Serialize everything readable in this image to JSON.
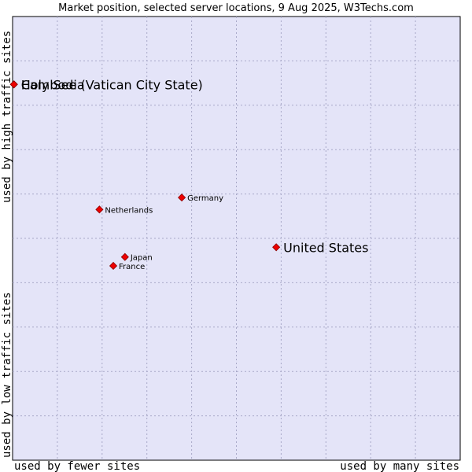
{
  "chart_data": {
    "type": "scatter",
    "title": "Market position, selected server locations, 9 Aug 2025, W3Techs.com",
    "xlabel_low": "used by fewer sites",
    "xlabel_high": "used by many sites",
    "ylabel_low": "used by low traffic sites",
    "ylabel_high": "used by high traffic sites",
    "xlim": [
      0,
      100
    ],
    "ylim": [
      0,
      100
    ],
    "grid": true,
    "colors": {
      "plot_bg": "#e4e4f8",
      "grid": "#a8a8c8",
      "marker": "#ee0000",
      "marker_edge": "#880000"
    },
    "points": [
      {
        "label": "Holy See (Vatican City State)",
        "x": 0.3,
        "y": 84.7,
        "size": "big"
      },
      {
        "label": "Cambodia",
        "x": 0.3,
        "y": 84.7,
        "size": "big"
      },
      {
        "label": "Germany",
        "x": 37.8,
        "y": 59.2,
        "size": "small"
      },
      {
        "label": "Netherlands",
        "x": 19.4,
        "y": 56.5,
        "size": "small"
      },
      {
        "label": "United States",
        "x": 58.9,
        "y": 48.0,
        "size": "big"
      },
      {
        "label": "Japan",
        "x": 25.1,
        "y": 45.8,
        "size": "small"
      },
      {
        "label": "France",
        "x": 22.5,
        "y": 43.8,
        "size": "small"
      }
    ]
  }
}
